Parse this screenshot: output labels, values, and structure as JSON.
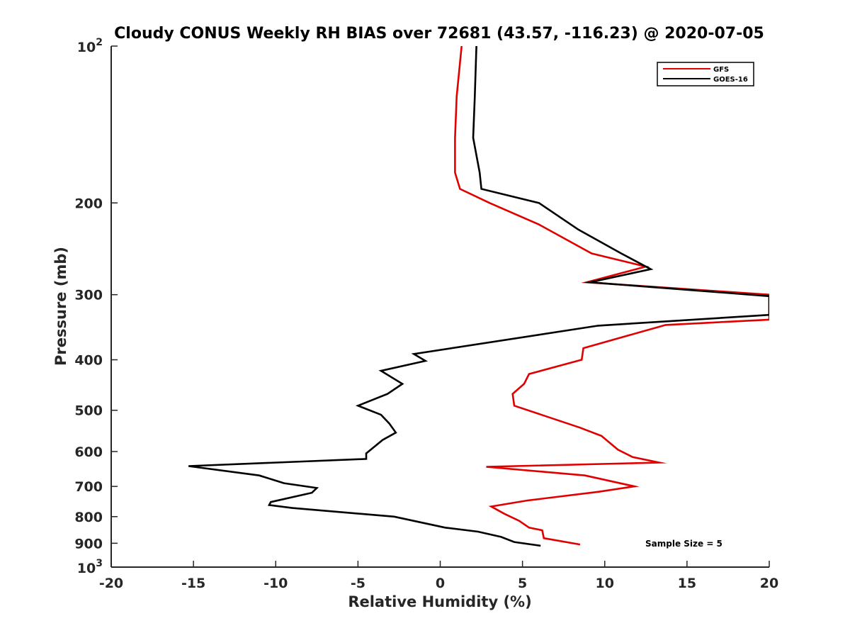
{
  "chart_data": {
    "type": "line",
    "title": "Cloudy CONUS Weekly RH BIAS over 72681 (43.57, -116.23) @ 2020-07-05",
    "xlabel": "Relative Humidity (%)",
    "ylabel": "Pressure (mb)",
    "xlim": [
      -20,
      20
    ],
    "ylim": [
      100,
      1000
    ],
    "y_scale": "log",
    "y_reversed": true,
    "grid": false,
    "legend_position": "top-right",
    "xticks": [
      "-20",
      "-15",
      "-10",
      "-5",
      "0",
      "5",
      "10",
      "15",
      "20"
    ],
    "yticks": [
      {
        "value": 100,
        "base": "10",
        "exp": "2"
      },
      {
        "value": 200,
        "label": "200"
      },
      {
        "value": 300,
        "label": "300"
      },
      {
        "value": 400,
        "label": "400"
      },
      {
        "value": 500,
        "label": "500"
      },
      {
        "value": 600,
        "label": "600"
      },
      {
        "value": 700,
        "label": "700"
      },
      {
        "value": 800,
        "label": "800"
      },
      {
        "value": 900,
        "label": "900"
      },
      {
        "value": 1000,
        "base": "10",
        "exp": "3"
      }
    ],
    "series": [
      {
        "name": "GFS",
        "color": "#e00000",
        "points": [
          [
            1.3,
            100
          ],
          [
            1.0,
            125
          ],
          [
            0.9,
            150
          ],
          [
            0.9,
            175
          ],
          [
            1.2,
            188
          ],
          [
            3.0,
            200
          ],
          [
            6.0,
            220
          ],
          [
            9.2,
            250
          ],
          [
            12.5,
            265
          ],
          [
            8.9,
            284
          ],
          [
            20.0,
            300
          ],
          [
            20.0,
            335
          ],
          [
            13.7,
            343
          ],
          [
            8.7,
            380
          ],
          [
            8.6,
            400
          ],
          [
            5.4,
            426
          ],
          [
            5.1,
            445
          ],
          [
            4.4,
            465
          ],
          [
            4.5,
            490
          ],
          [
            8.5,
            540
          ],
          [
            9.8,
            560
          ],
          [
            10.8,
            595
          ],
          [
            11.7,
            615
          ],
          [
            13.3,
            630
          ],
          [
            2.8,
            642
          ],
          [
            8.8,
            667
          ],
          [
            11.8,
            700
          ],
          [
            9.6,
            717
          ],
          [
            5.3,
            745
          ],
          [
            3.1,
            765
          ],
          [
            3.9,
            790
          ],
          [
            4.8,
            815
          ],
          [
            5.4,
            840
          ],
          [
            6.2,
            850
          ],
          [
            6.3,
            880
          ],
          [
            8.5,
            905
          ]
        ]
      },
      {
        "name": "GOES-16",
        "color": "#000000",
        "points": [
          [
            2.2,
            100
          ],
          [
            2.1,
            125
          ],
          [
            2.0,
            150
          ],
          [
            2.4,
            175
          ],
          [
            2.5,
            188
          ],
          [
            6.0,
            200
          ],
          [
            8.4,
            225
          ],
          [
            11.0,
            250
          ],
          [
            12.8,
            268
          ],
          [
            9.1,
            284
          ],
          [
            20.0,
            302
          ],
          [
            20.0,
            328
          ],
          [
            9.6,
            344
          ],
          [
            -1.6,
            390
          ],
          [
            -0.9,
            402
          ],
          [
            -3.6,
            420
          ],
          [
            -2.3,
            445
          ],
          [
            -3.2,
            465
          ],
          [
            -5.0,
            490
          ],
          [
            -3.6,
            510
          ],
          [
            -3.1,
            530
          ],
          [
            -2.7,
            552
          ],
          [
            -3.5,
            570
          ],
          [
            -4.5,
            605
          ],
          [
            -4.5,
            620
          ],
          [
            -15.3,
            640
          ],
          [
            -11.0,
            667
          ],
          [
            -9.5,
            690
          ],
          [
            -7.5,
            705
          ],
          [
            -7.8,
            720
          ],
          [
            -10.3,
            750
          ],
          [
            -10.4,
            760
          ],
          [
            -9.0,
            770
          ],
          [
            -2.8,
            800
          ],
          [
            0.3,
            840
          ],
          [
            2.3,
            855
          ],
          [
            3.7,
            875
          ],
          [
            4.5,
            895
          ],
          [
            6.1,
            910
          ]
        ]
      }
    ],
    "annotation": "Sample Size = 5"
  }
}
